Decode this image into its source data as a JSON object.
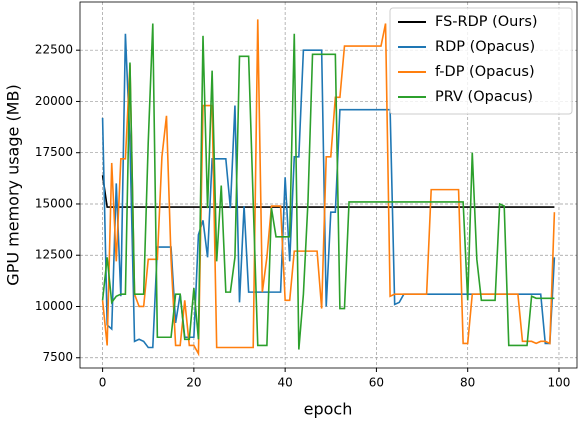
{
  "chart_data": {
    "type": "line",
    "xlabel": "epoch",
    "ylabel": "GPU memory usage (MB)",
    "x": [
      0,
      1,
      2,
      3,
      4,
      5,
      6,
      7,
      8,
      9,
      10,
      11,
      12,
      13,
      14,
      15,
      16,
      17,
      18,
      19,
      20,
      21,
      22,
      23,
      24,
      25,
      26,
      27,
      28,
      29,
      30,
      31,
      32,
      33,
      34,
      35,
      36,
      37,
      38,
      39,
      40,
      41,
      42,
      43,
      44,
      45,
      46,
      47,
      48,
      49,
      50,
      51,
      52,
      53,
      54,
      55,
      56,
      57,
      58,
      59,
      60,
      61,
      62,
      63,
      64,
      65,
      66,
      67,
      68,
      69,
      70,
      71,
      72,
      73,
      74,
      75,
      76,
      77,
      78,
      79,
      80,
      81,
      82,
      83,
      84,
      85,
      86,
      87,
      88,
      89,
      90,
      91,
      92,
      93,
      94,
      95,
      96,
      97,
      98,
      99
    ],
    "series": [
      {
        "name": "FS-RDP (Ours)",
        "color": "#000000",
        "values": [
          16400,
          14850,
          14850,
          14850,
          14850,
          14850,
          14850,
          14850,
          14850,
          14850,
          14850,
          14850,
          14850,
          14850,
          14850,
          14850,
          14850,
          14850,
          14850,
          14850,
          14850,
          14850,
          14850,
          14850,
          14850,
          14850,
          14850,
          14850,
          14850,
          14850,
          14850,
          14850,
          14850,
          14850,
          14850,
          14850,
          14850,
          14850,
          14850,
          14850,
          14850,
          14850,
          14850,
          14850,
          14850,
          14850,
          14850,
          14850,
          14850,
          14850,
          14850,
          14850,
          14850,
          14850,
          14850,
          14850,
          14850,
          14850,
          14850,
          14850,
          14850,
          14850,
          14850,
          14850,
          14850,
          14850,
          14850,
          14850,
          14850,
          14850,
          14850,
          14850,
          14850,
          14850,
          14850,
          14850,
          14850,
          14850,
          14850,
          14850,
          14850,
          14850,
          14850,
          14850,
          14850,
          14850,
          14850,
          14850,
          14850,
          14850,
          14850,
          14850,
          14850,
          14850,
          14850,
          14850,
          14850,
          14850,
          14850,
          14850
        ]
      },
      {
        "name": "RDP (Opacus)",
        "color": "#1f77b4",
        "values": [
          19200,
          9100,
          8900,
          16000,
          10500,
          23300,
          18000,
          8300,
          8400,
          8300,
          8000,
          8000,
          12900,
          12900,
          12900,
          12900,
          9200,
          10600,
          8500,
          8500,
          8500,
          13500,
          14200,
          12400,
          17200,
          17200,
          17200,
          17200,
          14800,
          19800,
          10200,
          14900,
          10700,
          10700,
          10700,
          10700,
          10700,
          10700,
          10700,
          10700,
          16300,
          12200,
          17300,
          17300,
          22500,
          22500,
          22500,
          22500,
          22500,
          10000,
          14600,
          14600,
          19600,
          19600,
          19600,
          19600,
          19600,
          19600,
          19600,
          19600,
          19600,
          19600,
          19600,
          19600,
          10100,
          10200,
          10600,
          10600,
          10600,
          10600,
          10600,
          10600,
          10600,
          10600,
          10600,
          10600,
          10600,
          10600,
          10600,
          10600,
          10600,
          10600,
          10600,
          10600,
          10600,
          10600,
          10600,
          10600,
          10600,
          10600,
          10600,
          10600,
          10600,
          10600,
          10600,
          10600,
          10600,
          8200,
          8200,
          12400
        ]
      },
      {
        "name": "f-DP (Opacus)",
        "color": "#ff7f0e",
        "values": [
          10300,
          8100,
          17000,
          12200,
          17200,
          17200,
          21800,
          10600,
          10000,
          10000,
          12300,
          12300,
          12300,
          17300,
          19300,
          12300,
          8100,
          8100,
          10300,
          8100,
          8100,
          7700,
          19800,
          19800,
          19800,
          8000,
          8000,
          8000,
          8000,
          8000,
          8000,
          8000,
          8000,
          8000,
          24000,
          10700,
          12400,
          14900,
          14900,
          14900,
          10300,
          10300,
          12700,
          12700,
          12700,
          12700,
          12700,
          12700,
          9900,
          17300,
          17300,
          20200,
          20200,
          22700,
          22700,
          22700,
          22700,
          22700,
          22700,
          22700,
          22700,
          22700,
          23800,
          10500,
          10600,
          10600,
          10600,
          10600,
          10600,
          10600,
          10600,
          10600,
          15700,
          15700,
          15700,
          15700,
          15700,
          15700,
          15700,
          8200,
          8200,
          10600,
          10600,
          10600,
          10600,
          10600,
          10600,
          10600,
          10600,
          10600,
          10600,
          10600,
          8300,
          8300,
          8300,
          8200,
          8300,
          8300,
          8200,
          14600
        ]
      },
      {
        "name": "PRV (Opacus)",
        "color": "#2ca02c",
        "values": [
          10300,
          12400,
          10200,
          10500,
          10600,
          10600,
          21900,
          10600,
          10600,
          10600,
          18000,
          23800,
          8500,
          8500,
          8500,
          8500,
          10600,
          10600,
          8400,
          8400,
          10900,
          8400,
          23200,
          14800,
          21500,
          12200,
          15900,
          10700,
          10700,
          12400,
          22200,
          22200,
          22200,
          15100,
          8100,
          8100,
          8100,
          14800,
          13400,
          13400,
          13400,
          13400,
          23300,
          7900,
          10600,
          15100,
          22300,
          22300,
          22300,
          22300,
          22300,
          22300,
          9900,
          9900,
          15100,
          15100,
          15100,
          15100,
          15100,
          15100,
          15100,
          15100,
          15100,
          15100,
          15100,
          15100,
          15100,
          15100,
          15100,
          15100,
          15100,
          15100,
          15100,
          15100,
          15100,
          15100,
          15100,
          15100,
          15100,
          15100,
          10300,
          17500,
          12300,
          10300,
          10300,
          10300,
          10300,
          15000,
          14900,
          8100,
          8100,
          8100,
          8100,
          8100,
          10500,
          10400,
          10400,
          10400,
          10400,
          10400
        ]
      }
    ],
    "xlim": [
      -4.95,
      103.95
    ],
    "xticks": [
      0,
      20,
      40,
      60,
      80,
      100
    ],
    "ylim": [
      7000,
      24850
    ],
    "yticks": [
      7500,
      10000,
      12500,
      15000,
      17500,
      20000,
      22500
    ],
    "grid": true,
    "legend": "upper right"
  }
}
